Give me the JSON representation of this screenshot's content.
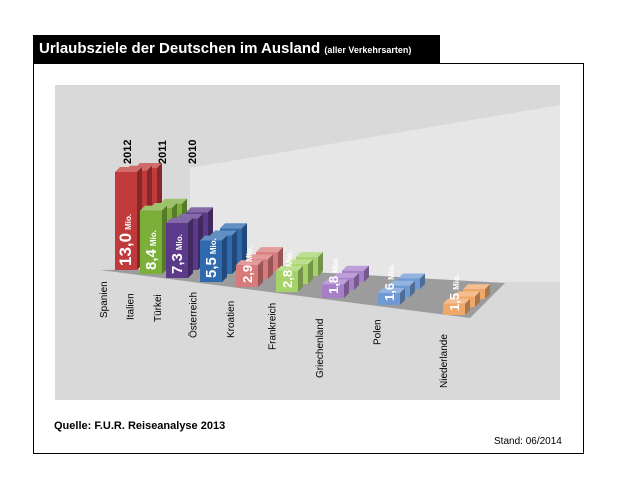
{
  "header": {
    "title": "Urlaubsziele der Deutschen im Ausland",
    "subtitle": "(aller Verkehrsarten)"
  },
  "footer": {
    "source": "Quelle: F.U.R. Reiseanalyse 2013",
    "stand": "Stand: 06/2014"
  },
  "chart_data": {
    "type": "bar",
    "projection": "3d",
    "title": "Urlaubsziele der Deutschen im Ausland",
    "subtitle": "(aller Verkehrsarten)",
    "unit": "Mio.",
    "categories": [
      "Spanien",
      "Italien",
      "Türkei",
      "Österreich",
      "Kroatien",
      "Frankreich",
      "Griechenland",
      "Polen",
      "Niederlande"
    ],
    "series": [
      {
        "name": "2012",
        "values": [
          13.0,
          8.4,
          7.3,
          5.5,
          2.9,
          2.8,
          1.8,
          1.6,
          1.5
        ],
        "labels": [
          "13,0",
          "8,4",
          "7,3",
          "5,5",
          "2,9",
          "2,8",
          "1,8",
          "1,6",
          "1,5"
        ]
      },
      {
        "name": "2011",
        "values": [
          12.1,
          7.7,
          6.8,
          5.1,
          2.6,
          2.6,
          1.6,
          1.5,
          1.4
        ]
      },
      {
        "name": "2010",
        "values": [
          11.4,
          7.2,
          6.6,
          5.0,
          2.5,
          2.5,
          1.5,
          1.4,
          1.3
        ]
      }
    ],
    "legend": "series names printed vertically above the first category",
    "colors": [
      "#c0393b",
      "#7cae3a",
      "#5b3a8a",
      "#2f6aae",
      "#d97a7a",
      "#a5d36a",
      "#a77fc9",
      "#6f9ad6",
      "#f0a868"
    ],
    "grid": false
  }
}
